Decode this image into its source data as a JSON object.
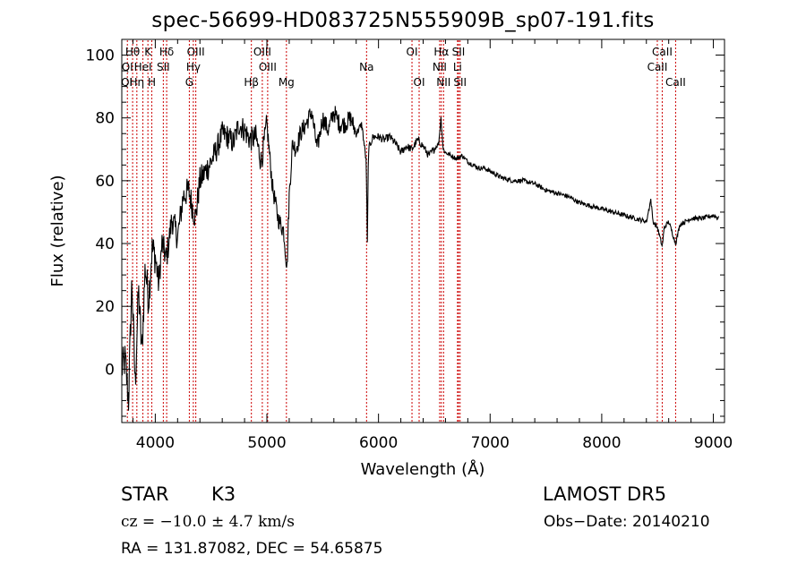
{
  "chart_data": {
    "type": "line",
    "title": "spec-56699-HD083725N555909B_sp07-191.fits",
    "xlabel": "Wavelength (Å)",
    "ylabel": "Flux (relative)",
    "xlim": [
      3700,
      9100
    ],
    "ylim": [
      -17,
      105
    ],
    "xticks": [
      4000,
      5000,
      6000,
      7000,
      8000,
      9000
    ],
    "yticks": [
      0,
      20,
      40,
      60,
      80,
      100
    ],
    "grid": false,
    "series": [
      {
        "x": [
          3700,
          3730,
          3760,
          3790,
          3820,
          3850,
          3880,
          3910,
          3940,
          3970,
          4000,
          4030,
          4060,
          4100,
          4150,
          4200,
          4250,
          4300,
          4330,
          4360,
          4400,
          4450,
          4500,
          4550,
          4600,
          4650,
          4700,
          4750,
          4800,
          4850,
          4900,
          4950,
          5000,
          5050,
          5100,
          5150,
          5180,
          5200,
          5230,
          5260,
          5300,
          5350,
          5400,
          5450,
          5500,
          5550,
          5600,
          5650,
          5700,
          5750,
          5800,
          5850,
          5890,
          5900,
          5910,
          5950,
          6000,
          6050,
          6100,
          6150,
          6200,
          6250,
          6300,
          6350,
          6400,
          6450,
          6500,
          6540,
          6560,
          6580,
          6600,
          6650,
          6700,
          6750,
          6800,
          6850,
          6900,
          6950,
          7000,
          7100,
          7200,
          7300,
          7400,
          7500,
          7600,
          7700,
          7800,
          7900,
          8000,
          8100,
          8200,
          8300,
          8400,
          8440,
          8460,
          8500,
          8542,
          8560,
          8600,
          8662,
          8700,
          8800,
          8900,
          9000,
          9050
        ],
        "y": [
          0,
          3,
          -10,
          28,
          -5,
          25,
          5,
          33,
          22,
          38,
          36,
          27,
          40,
          35,
          48,
          42,
          55,
          57,
          52,
          48,
          60,
          63,
          66,
          70,
          75,
          74,
          72,
          78,
          76,
          73,
          74,
          66,
          78,
          58,
          48,
          44,
          32,
          55,
          72,
          70,
          75,
          78,
          82,
          70,
          80,
          76,
          82,
          78,
          78,
          80,
          75,
          78,
          66,
          40,
          70,
          74,
          74,
          73,
          74,
          72,
          69,
          71,
          70,
          73,
          71,
          68,
          70,
          72,
          80,
          70,
          69,
          68,
          67,
          68,
          66,
          65,
          64,
          64,
          63,
          61,
          60,
          60,
          59,
          57,
          56,
          55,
          53,
          52,
          51,
          50,
          49,
          48,
          47,
          54,
          47,
          45,
          39,
          45,
          47,
          40,
          46,
          48,
          48,
          49,
          48
        ],
        "color": "#000000"
      }
    ],
    "lines": [
      {
        "name": "QI",
        "x": 3750
      },
      {
        "name": "Hη",
        "x": 3835
      },
      {
        "name": "Hθ",
        "x": 3797
      },
      {
        "name": "HeI",
        "x": 3889
      },
      {
        "name": "K",
        "x": 3934
      },
      {
        "name": "H",
        "x": 3969
      },
      {
        "name": "Hδ",
        "x": 4102
      },
      {
        "name": "SII",
        "x": 4072
      },
      {
        "name": "G",
        "x": 4305
      },
      {
        "name": "Hγ",
        "x": 4341
      },
      {
        "name": "OIII",
        "x": 4363
      },
      {
        "name": "Hβ",
        "x": 4861
      },
      {
        "name": "OIII",
        "x": 4959
      },
      {
        "name": "OIII",
        "x": 5007
      },
      {
        "name": "Mg",
        "x": 5175
      },
      {
        "name": "Na",
        "x": 5893
      },
      {
        "name": "OI",
        "x": 6300
      },
      {
        "name": "OI",
        "x": 6364
      },
      {
        "name": "NII",
        "x": 6548
      },
      {
        "name": "Hα",
        "x": 6563
      },
      {
        "name": "NII",
        "x": 6583
      },
      {
        "name": "Li",
        "x": 6708
      },
      {
        "name": "SII",
        "x": 6717
      },
      {
        "name": "SII",
        "x": 6731
      },
      {
        "name": "CaII",
        "x": 8498
      },
      {
        "name": "CaII",
        "x": 8542
      },
      {
        "name": "CaII",
        "x": 8662
      }
    ],
    "line_labels": [
      {
        "text": "Hθ",
        "row": 0,
        "x": 3797
      },
      {
        "text": "K",
        "row": 0,
        "x": 3934
      },
      {
        "text": "Hδ",
        "row": 0,
        "x": 4102
      },
      {
        "text": "OIII",
        "row": 0,
        "x": 4363
      },
      {
        "text": "OIII",
        "row": 0,
        "x": 4959
      },
      {
        "text": "OI",
        "row": 0,
        "x": 6300
      },
      {
        "text": "Hα",
        "row": 0,
        "x": 6563
      },
      {
        "text": "SII",
        "row": 0,
        "x": 6717
      },
      {
        "text": "CaII",
        "row": 0,
        "x": 8542
      },
      {
        "text": "QI",
        "row": 1,
        "x": 3750
      },
      {
        "text": "HeI",
        "row": 1,
        "x": 3889
      },
      {
        "text": "SII",
        "row": 1,
        "x": 4072
      },
      {
        "text": "Hγ",
        "row": 1,
        "x": 4341
      },
      {
        "text": "OIII",
        "row": 1,
        "x": 5007
      },
      {
        "text": "Na",
        "row": 1,
        "x": 5893
      },
      {
        "text": "NII",
        "row": 1,
        "x": 6548
      },
      {
        "text": "Li",
        "row": 1,
        "x": 6708
      },
      {
        "text": "CaII",
        "row": 1,
        "x": 8498
      },
      {
        "text": "QI",
        "row": 2,
        "x": 3745
      },
      {
        "text": "Hη",
        "row": 2,
        "x": 3835
      },
      {
        "text": "H",
        "row": 2,
        "x": 3969
      },
      {
        "text": "G",
        "row": 2,
        "x": 4305
      },
      {
        "text": "Hβ",
        "row": 2,
        "x": 4861
      },
      {
        "text": "Mg",
        "row": 2,
        "x": 5175
      },
      {
        "text": "OI",
        "row": 2,
        "x": 6364
      },
      {
        "text": "NII",
        "row": 2,
        "x": 6583
      },
      {
        "text": "SII",
        "row": 2,
        "x": 6731
      },
      {
        "text": "CaII",
        "row": 2,
        "x": 8662
      }
    ],
    "line_color": "#cc0000"
  },
  "info": {
    "object_type": "STAR",
    "subclass": "K3",
    "survey": "LAMOST  DR5",
    "cz": "cz = −10.0 ± 4.7 km/s",
    "obs_date": "Obs−Date: 20140210",
    "coords": "RA = 131.87082, DEC =  54.65875"
  }
}
